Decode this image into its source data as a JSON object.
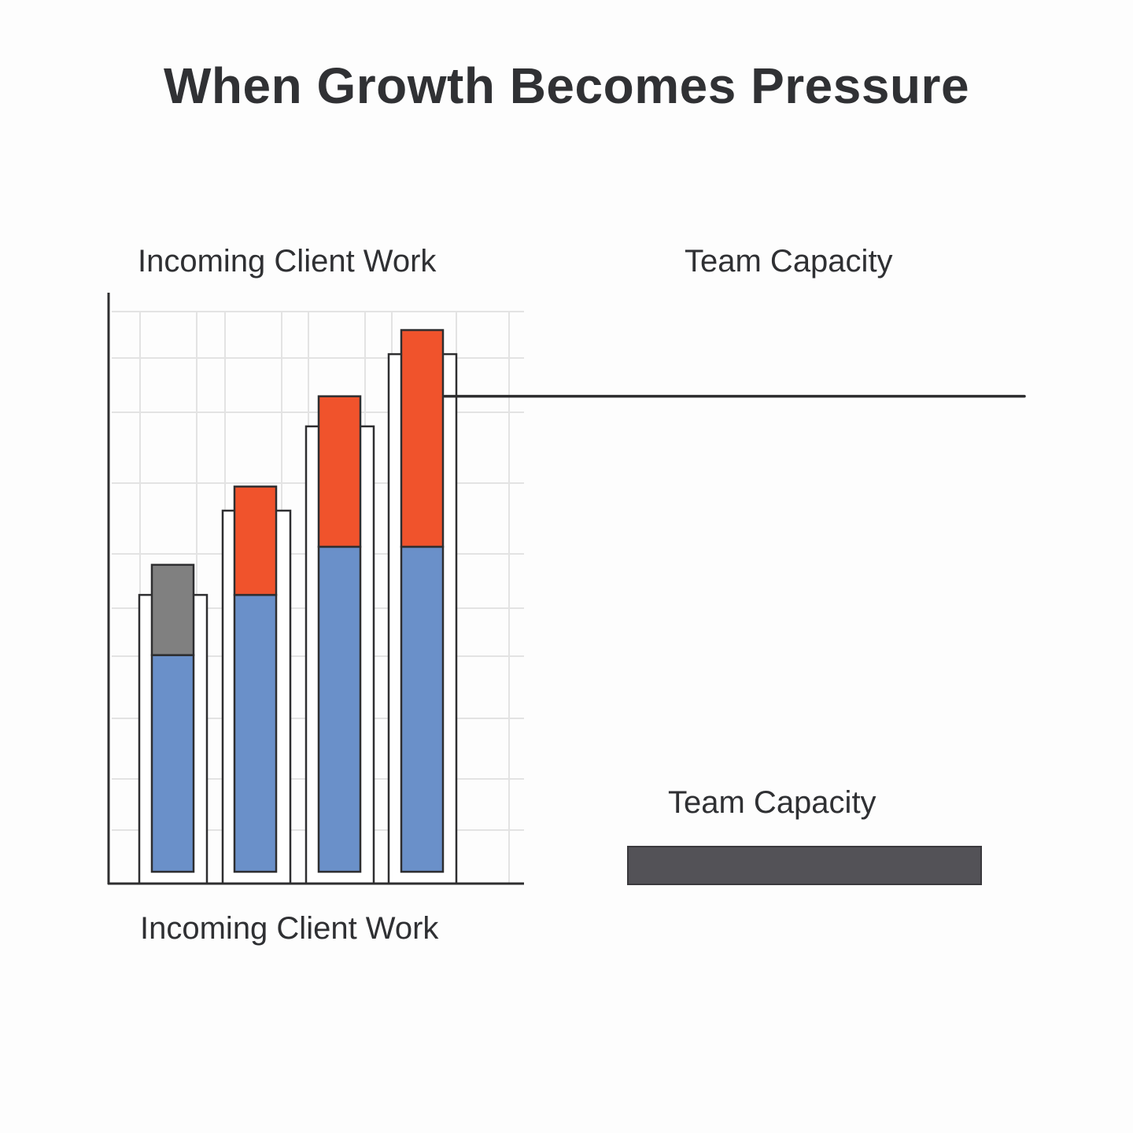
{
  "title": "When Growth Becomes Pressure",
  "labels": {
    "left_top": "Incoming Client Work",
    "right_top": "Team Capacity",
    "left_bottom": "Incoming Client Work",
    "capacity_bar": "Team Capacity"
  },
  "colors": {
    "base": "#6a90c9",
    "overflow": "#f0532c",
    "initial_extra": "#808080",
    "capacity": "#535257",
    "outline": "#2e2e30",
    "grid": "#e3e3e3"
  },
  "chart_data": {
    "type": "bar",
    "title": "When Growth Becomes Pressure",
    "xlabel": "Incoming Client Work",
    "ylabel": "",
    "categories": [
      "",
      "",
      "",
      ""
    ],
    "grid": true,
    "ylim": [
      0,
      10
    ],
    "series": [
      {
        "values": [
          3.6,
          4.6,
          5.4,
          5.4
        ]
      },
      {
        "values": [
          1.5,
          1.8,
          2.5,
          3.6
        ]
      }
    ],
    "capacity_outline_values": [
      4.6,
      6.0,
      7.4,
      8.6
    ],
    "capacity_line_value": 7.9
  }
}
